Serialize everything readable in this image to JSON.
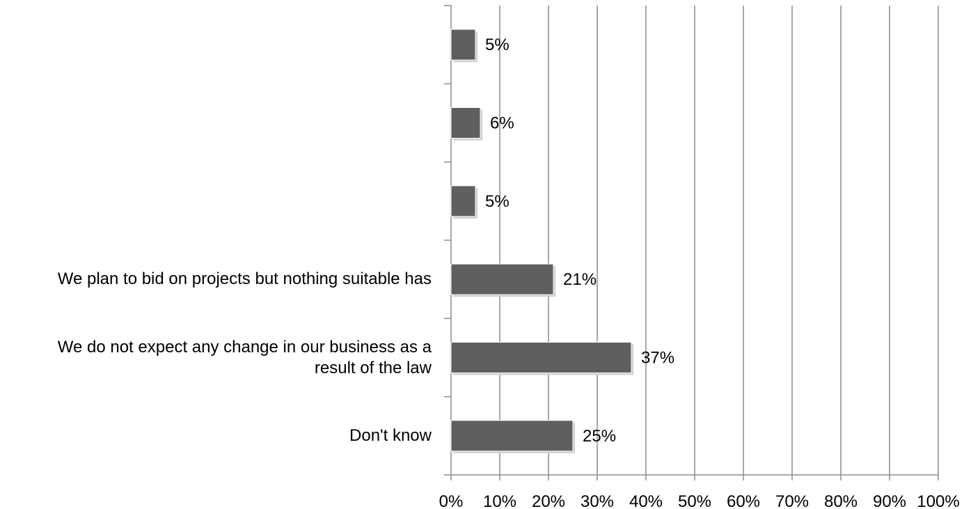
{
  "chart_data": {
    "type": "bar",
    "orientation": "horizontal",
    "categories": [
      "",
      "",
      "",
      "We plan to bid on projects but nothing suitable has",
      "We do not expect any change in our business as a\nresult of the law",
      "Don't know"
    ],
    "values": [
      5,
      6,
      5,
      21,
      37,
      25
    ],
    "data_labels": [
      "5%",
      "6%",
      "5%",
      "21%",
      "37%",
      "25%"
    ],
    "xlim": [
      0,
      100
    ],
    "x_ticks": [
      "0%",
      "10%",
      "20%",
      "30%",
      "40%",
      "50%",
      "60%",
      "70%",
      "80%",
      "90%",
      "100%"
    ],
    "grid": "vertical",
    "colors": {
      "bar": "#5f5f5f",
      "grid": "#8c8c8c",
      "text": "#000000"
    }
  }
}
